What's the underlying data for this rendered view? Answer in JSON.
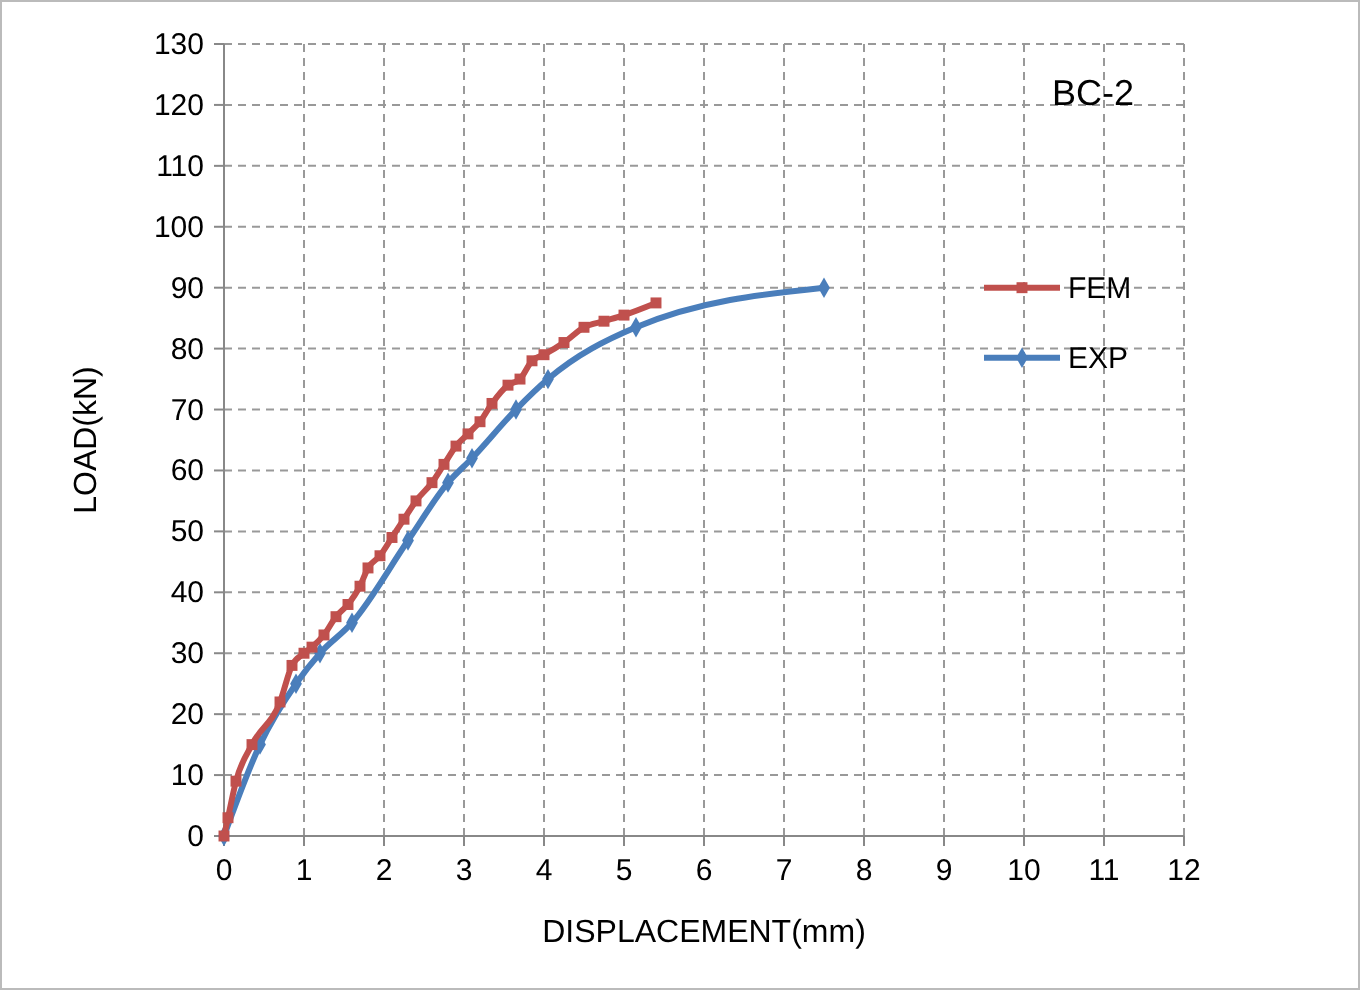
{
  "chart_data": {
    "type": "line",
    "title": "BC-2",
    "xlabel": "DISPLACEMENT(mm)",
    "ylabel": "LOAD(kN)",
    "xlim": [
      0,
      12
    ],
    "ylim": [
      0,
      130
    ],
    "xticks": [
      0,
      1,
      2,
      3,
      4,
      5,
      6,
      7,
      8,
      9,
      10,
      11,
      12
    ],
    "yticks": [
      0,
      10,
      20,
      30,
      40,
      50,
      60,
      70,
      80,
      90,
      100,
      110,
      120,
      130
    ],
    "grid": true,
    "legend": "right",
    "series": [
      {
        "name": "FEM",
        "color": "#c0504d",
        "marker": "square",
        "x": [
          0,
          0.05,
          0.15,
          0.35,
          0.7,
          0.85,
          1.0,
          1.1,
          1.25,
          1.4,
          1.55,
          1.7,
          1.8,
          1.95,
          2.1,
          2.25,
          2.4,
          2.6,
          2.75,
          2.9,
          3.05,
          3.2,
          3.35,
          3.55,
          3.7,
          3.85,
          4.0,
          4.25,
          4.5,
          4.75,
          5.0,
          5.4
        ],
        "values": [
          0,
          3,
          9,
          15,
          22,
          28,
          30,
          31,
          33,
          36,
          38,
          41,
          44,
          46,
          49,
          52,
          55,
          58,
          61,
          64,
          66,
          68,
          71,
          74,
          75,
          78,
          79,
          81,
          83.5,
          84.5,
          85.5,
          87.5
        ]
      },
      {
        "name": "EXP",
        "color": "#4a7ebb",
        "marker": "diamond",
        "x": [
          0,
          0.45,
          0.9,
          1.2,
          1.6,
          2.3,
          2.8,
          3.1,
          3.65,
          4.05,
          5.15,
          7.5
        ],
        "values": [
          0,
          15,
          25,
          30,
          35,
          48.5,
          58,
          62,
          70,
          75,
          83.5,
          90
        ]
      }
    ]
  }
}
